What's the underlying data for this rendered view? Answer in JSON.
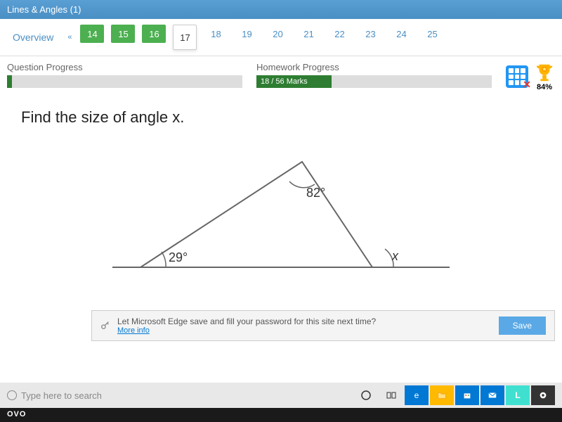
{
  "titlebar": "Lines & Angles (1)",
  "nav": {
    "overview": "Overview",
    "chevron": "«",
    "items": [
      {
        "n": "14",
        "state": "done"
      },
      {
        "n": "15",
        "state": "done"
      },
      {
        "n": "16",
        "state": "done"
      },
      {
        "n": "17",
        "state": "current"
      },
      {
        "n": "18",
        "state": "pending"
      },
      {
        "n": "19",
        "state": "pending"
      },
      {
        "n": "20",
        "state": "pending"
      },
      {
        "n": "21",
        "state": "pending"
      },
      {
        "n": "22",
        "state": "pending"
      },
      {
        "n": "23",
        "state": "pending"
      },
      {
        "n": "24",
        "state": "pending"
      },
      {
        "n": "25",
        "state": "pending"
      }
    ]
  },
  "progress": {
    "q_label": "Question Progress",
    "q_pct": 2,
    "h_label": "Homework Progress",
    "h_text": "18 / 56 Marks",
    "h_pct": 32
  },
  "trophy_pct": "84%",
  "question_text": "Find the size of angle x.",
  "triangle": {
    "apex_angle": "82°",
    "left_angle": "29°",
    "right_label": "x",
    "stroke": "#666",
    "stroke_width": 2,
    "text_color": "#333",
    "font_size": 18
  },
  "edge": {
    "msg": "Let Microsoft Edge save and fill your password for this site next time?",
    "more": "More info",
    "save": "Save"
  },
  "taskbar": {
    "search_placeholder": "Type here to search"
  },
  "brand": "OVO"
}
